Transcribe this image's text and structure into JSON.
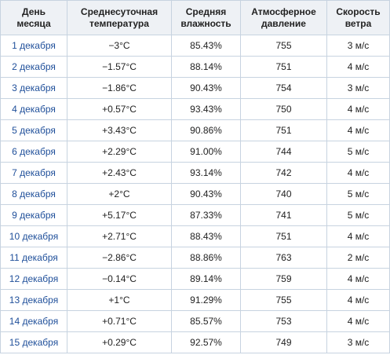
{
  "table": {
    "header": [
      "День\nмесяца",
      "Среднесуточная\nтемпература",
      "Средняя\nвлажность",
      "Атмосферное\nдавление",
      "Скорость\nветра"
    ],
    "rows": [
      [
        "1 декабря",
        "−3°C",
        "85.43%",
        "755",
        "3 м/с"
      ],
      [
        "2 декабря",
        "−1.57°C",
        "88.14%",
        "751",
        "4 м/с"
      ],
      [
        "3 декабря",
        "−1.86°C",
        "90.43%",
        "754",
        "3 м/с"
      ],
      [
        "4 декабря",
        "+0.57°C",
        "93.43%",
        "750",
        "4 м/с"
      ],
      [
        "5 декабря",
        "+3.43°C",
        "90.86%",
        "751",
        "4 м/с"
      ],
      [
        "6 декабря",
        "+2.29°C",
        "91.00%",
        "744",
        "5 м/с"
      ],
      [
        "7 декабря",
        "+2.43°C",
        "93.14%",
        "742",
        "4 м/с"
      ],
      [
        "8 декабря",
        "+2°C",
        "90.43%",
        "740",
        "5 м/с"
      ],
      [
        "9 декабря",
        "+5.17°C",
        "87.33%",
        "741",
        "5 м/с"
      ],
      [
        "10 декабря",
        "+2.71°C",
        "88.43%",
        "751",
        "4 м/с"
      ],
      [
        "11 декабря",
        "−2.86°C",
        "88.86%",
        "763",
        "2 м/с"
      ],
      [
        "12 декабря",
        "−0.14°C",
        "89.14%",
        "759",
        "4 м/с"
      ],
      [
        "13 декабря",
        "+1°C",
        "91.29%",
        "755",
        "4 м/с"
      ],
      [
        "14 декабря",
        "+0.71°C",
        "85.57%",
        "753",
        "4 м/с"
      ],
      [
        "15 декабря",
        "+0.29°C",
        "92.57%",
        "749",
        "3 м/с"
      ]
    ]
  }
}
